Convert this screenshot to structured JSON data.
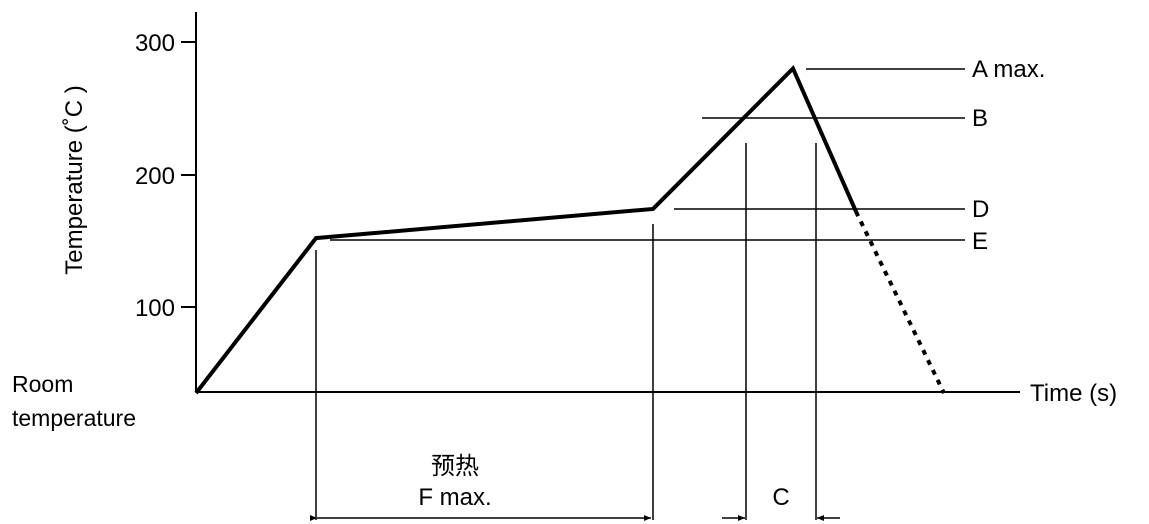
{
  "chart_data": {
    "type": "line",
    "ylabel": "Temperature (˚C )",
    "xlabel": "Time (s)",
    "y_ticks": [
      "100",
      "200",
      "300"
    ],
    "origin_label": [
      "Room",
      "temperature"
    ],
    "ylim": [
      35,
      300
    ],
    "series": [
      {
        "style": "solid",
        "points": [
          {
            "t": 0,
            "temp": 35
          },
          {
            "t": 120,
            "temp": 152
          },
          {
            "t": 457,
            "temp": 174
          },
          {
            "t": 597,
            "temp": 280
          },
          {
            "t": 660,
            "temp": 172
          }
        ]
      },
      {
        "style": "dotted",
        "points": [
          {
            "t": 660,
            "temp": 172
          },
          {
            "t": 748,
            "temp": 35
          }
        ]
      }
    ],
    "reference_levels": [
      {
        "label": "A max.",
        "temp": 280
      },
      {
        "label": "B",
        "temp": 243
      },
      {
        "label": "D",
        "temp": 175
      },
      {
        "label": "E",
        "temp": 152
      }
    ],
    "time_spans": [
      {
        "top_label": "预热",
        "label": "F max.",
        "from": 120,
        "to": 457
      },
      {
        "label": "C",
        "from": 550,
        "to": 620
      }
    ]
  }
}
